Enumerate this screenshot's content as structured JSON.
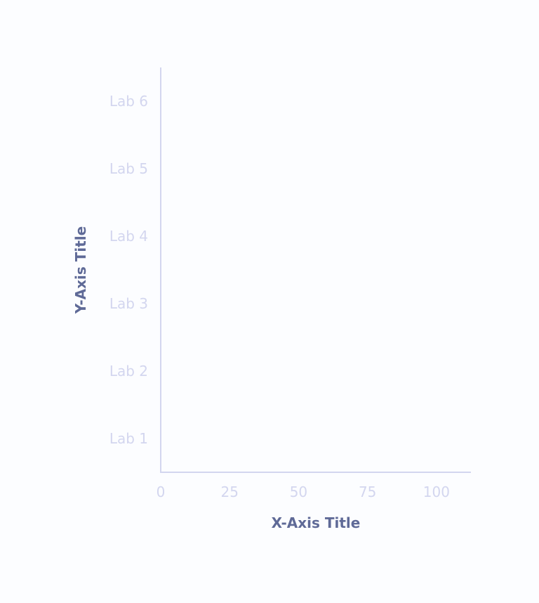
{
  "chart_data": {
    "type": "bar",
    "orientation": "horizontal",
    "title": "",
    "xlabel": "X-Axis Title",
    "ylabel": "Y-Axis Title",
    "categories": [
      "Lab 1",
      "Lab 2",
      "Lab 3",
      "Lab 4",
      "Lab 5",
      "Lab 6"
    ],
    "x_ticks": [
      "0",
      "25",
      "50",
      "75",
      "100"
    ],
    "x_tick_values": [
      0,
      25,
      50,
      75,
      100
    ],
    "xlim": [
      0,
      112.5
    ],
    "series": [],
    "grid": false,
    "colors": {
      "axis": "#d3d6ef",
      "tick_label": "#d3d6ef",
      "axis_title": "#5f6a97",
      "background": "#fcfdff"
    }
  }
}
